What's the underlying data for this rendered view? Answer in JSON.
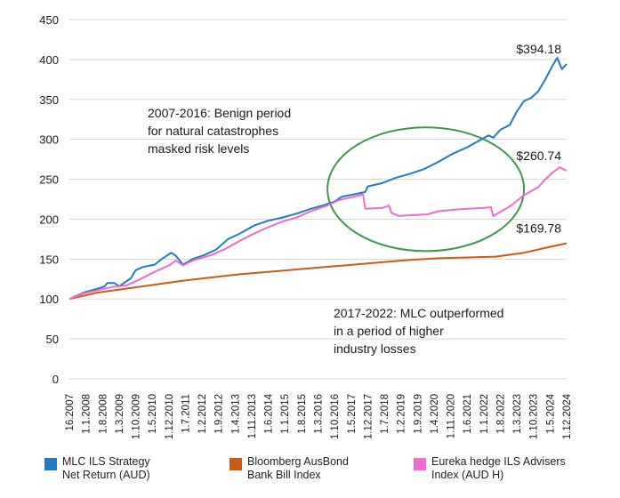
{
  "chart_data": {
    "type": "line",
    "title": "",
    "xlabel": "",
    "ylabel": "",
    "ylim": [
      0,
      450
    ],
    "y_ticks": [
      "0",
      "50",
      "100",
      "150",
      "200",
      "250",
      "300",
      "350",
      "400",
      "450"
    ],
    "x_tick_labels": [
      "16.2007",
      "1.1.2008",
      "1.8.2008",
      "1.3.2009",
      "1.10.2009",
      "1.5.2010",
      "1.12.2010",
      "1.7.2011",
      "1.2.2012",
      "1.9.2012",
      "1.4.2013",
      "1.11.2013",
      "1.6.2014",
      "1.1.2015",
      "1.8.2015",
      "1.3.2016",
      "1.10.2016",
      "1.5.2017",
      "1.12.2017",
      "1.7.2018",
      "1.2.2019",
      "1.9.2019",
      "1.4.2020",
      "1.11.2020",
      "1.6.2021",
      "1.1.2022",
      "1.8.2022",
      "1.3.2023",
      "1.10.2023",
      "1.5.2024",
      "1.12.2024"
    ],
    "x_axis": {
      "start": "2007-06",
      "end": "2024-12"
    },
    "grid": "horizontal",
    "legend_position": "bottom",
    "series": [
      {
        "name": "MLC ILS Strategy\nNet Return (AUD)",
        "color": "#1f7cc2",
        "end_label": "$394.18",
        "points": [
          [
            "2007-06",
            100
          ],
          [
            "2007-12",
            108
          ],
          [
            "2008-06",
            113
          ],
          [
            "2008-09",
            116
          ],
          [
            "2008-10",
            120
          ],
          [
            "2009-01",
            120
          ],
          [
            "2009-03",
            116
          ],
          [
            "2009-06",
            122
          ],
          [
            "2009-08",
            126
          ],
          [
            "2009-10",
            136
          ],
          [
            "2010-01",
            140
          ],
          [
            "2010-06",
            143
          ],
          [
            "2010-09",
            150
          ],
          [
            "2011-01",
            158
          ],
          [
            "2011-03",
            154
          ],
          [
            "2011-06",
            143
          ],
          [
            "2011-10",
            150
          ],
          [
            "2012-03",
            155
          ],
          [
            "2012-08",
            162
          ],
          [
            "2013-01",
            175
          ],
          [
            "2013-06",
            182
          ],
          [
            "2013-12",
            192
          ],
          [
            "2014-06",
            198
          ],
          [
            "2014-12",
            202
          ],
          [
            "2015-06",
            207
          ],
          [
            "2015-12",
            213
          ],
          [
            "2016-06",
            218
          ],
          [
            "2016-10",
            222
          ],
          [
            "2017-01",
            228
          ],
          [
            "2017-06",
            231
          ],
          [
            "2017-11",
            234
          ],
          [
            "2017-12",
            241
          ],
          [
            "2018-06",
            245
          ],
          [
            "2018-12",
            252
          ],
          [
            "2019-06",
            257
          ],
          [
            "2019-12",
            263
          ],
          [
            "2020-06",
            272
          ],
          [
            "2020-12",
            282
          ],
          [
            "2021-06",
            290
          ],
          [
            "2021-12",
            300
          ],
          [
            "2022-03",
            305
          ],
          [
            "2022-05",
            302
          ],
          [
            "2022-08",
            312
          ],
          [
            "2022-12",
            318
          ],
          [
            "2023-03",
            335
          ],
          [
            "2023-06",
            348
          ],
          [
            "2023-09",
            352
          ],
          [
            "2023-12",
            360
          ],
          [
            "2024-03",
            375
          ],
          [
            "2024-06",
            392
          ],
          [
            "2024-08",
            402
          ],
          [
            "2024-10",
            388
          ],
          [
            "2024-12",
            394.18
          ]
        ]
      },
      {
        "name": "Bloomberg AusBond\nBank Bill Index",
        "color": "#cc5a14",
        "end_label": "$169.78",
        "points": [
          [
            "2007-06",
            100
          ],
          [
            "2008-06",
            108
          ],
          [
            "2009-06",
            113
          ],
          [
            "2010-06",
            118
          ],
          [
            "2011-06",
            123
          ],
          [
            "2012-06",
            127
          ],
          [
            "2013-06",
            131
          ],
          [
            "2014-06",
            134
          ],
          [
            "2015-06",
            137
          ],
          [
            "2016-06",
            140
          ],
          [
            "2017-06",
            143
          ],
          [
            "2018-06",
            146
          ],
          [
            "2019-06",
            149
          ],
          [
            "2020-06",
            151
          ],
          [
            "2021-06",
            152
          ],
          [
            "2022-06",
            153
          ],
          [
            "2023-06",
            158
          ],
          [
            "2024-06",
            166
          ],
          [
            "2024-12",
            169.78
          ]
        ]
      },
      {
        "name": "Eureka hedge ILS Advisers\nIndex (AUD H)",
        "color": "#f06ad0",
        "end_label": "$260.74",
        "points": [
          [
            "2007-06",
            100
          ],
          [
            "2007-12",
            107
          ],
          [
            "2008-06",
            111
          ],
          [
            "2008-12",
            115
          ],
          [
            "2009-06",
            117
          ],
          [
            "2009-12",
            125
          ],
          [
            "2010-06",
            134
          ],
          [
            "2010-12",
            142
          ],
          [
            "2011-03",
            148
          ],
          [
            "2011-06",
            142
          ],
          [
            "2011-10",
            148
          ],
          [
            "2012-06",
            155
          ],
          [
            "2012-12",
            163
          ],
          [
            "2013-06",
            173
          ],
          [
            "2013-12",
            182
          ],
          [
            "2014-06",
            190
          ],
          [
            "2014-12",
            197
          ],
          [
            "2015-06",
            202
          ],
          [
            "2015-12",
            210
          ],
          [
            "2016-06",
            216
          ],
          [
            "2016-12",
            224
          ],
          [
            "2017-06",
            228
          ],
          [
            "2017-10",
            231
          ],
          [
            "2017-11",
            213
          ],
          [
            "2018-06",
            214
          ],
          [
            "2018-09",
            217
          ],
          [
            "2018-10",
            208
          ],
          [
            "2019-01",
            204
          ],
          [
            "2019-06",
            205
          ],
          [
            "2020-01",
            206
          ],
          [
            "2020-06",
            210
          ],
          [
            "2021-01",
            212
          ],
          [
            "2021-06",
            213
          ],
          [
            "2022-01",
            214
          ],
          [
            "2022-04",
            215
          ],
          [
            "2022-05",
            204
          ],
          [
            "2022-12",
            216
          ],
          [
            "2023-06",
            230
          ],
          [
            "2023-12",
            240
          ],
          [
            "2024-03",
            250
          ],
          [
            "2024-06",
            258
          ],
          [
            "2024-09",
            265
          ],
          [
            "2024-12",
            260.74
          ]
        ]
      }
    ],
    "annotations": [
      {
        "id": "benign",
        "lines": [
          "2007-2016: Benign period",
          "for natural catastrophes",
          "masked risk levels"
        ]
      },
      {
        "id": "outperformed",
        "lines": [
          "2017-2022: MLC outperformed",
          "in a period of higher",
          "industry losses"
        ]
      }
    ],
    "highlight_ellipse": {
      "color": "#3a9a4a",
      "from": "2016-07",
      "to": "2023-06",
      "ymin": 160,
      "ymax": 315
    }
  },
  "legend": [
    {
      "label": "MLC ILS Strategy\nNet Return (AUD)",
      "color": "#1f7cc2"
    },
    {
      "label": "Bloomberg AusBond\nBank Bill Index",
      "color": "#cc5a14"
    },
    {
      "label": "Eureka hedge ILS Advisers\nIndex (AUD H)",
      "color": "#f06ad0"
    }
  ]
}
